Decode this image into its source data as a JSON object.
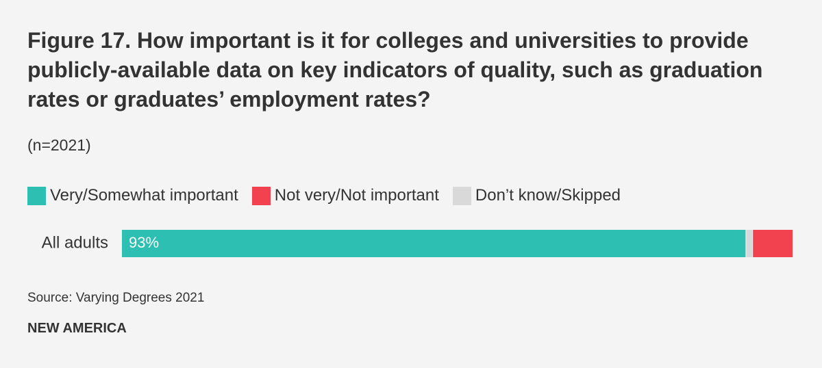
{
  "chart_data": {
    "type": "stacked-bar",
    "title": "Figure 17. How important is it for colleges and universities to provide publicly-available data on key indicators of quality, such as graduation rates or graduates’ employment rates?",
    "subtitle": "(n=2021)",
    "categories": [
      "All adults"
    ],
    "series": [
      {
        "name": "Very/Somewhat important",
        "color": "#2ebfb3",
        "values": [
          93
        ],
        "value_labels": [
          "93%"
        ]
      },
      {
        "name": "Not very/Not important",
        "color": "#f2424f",
        "values": [
          6
        ]
      },
      {
        "name": "Don’t know/Skipped",
        "color": "#d9d9d9",
        "values": [
          1
        ]
      }
    ],
    "xlim": [
      0,
      100
    ],
    "source": "Source: Varying Degrees 2021",
    "brand": "NEW AMERICA"
  }
}
